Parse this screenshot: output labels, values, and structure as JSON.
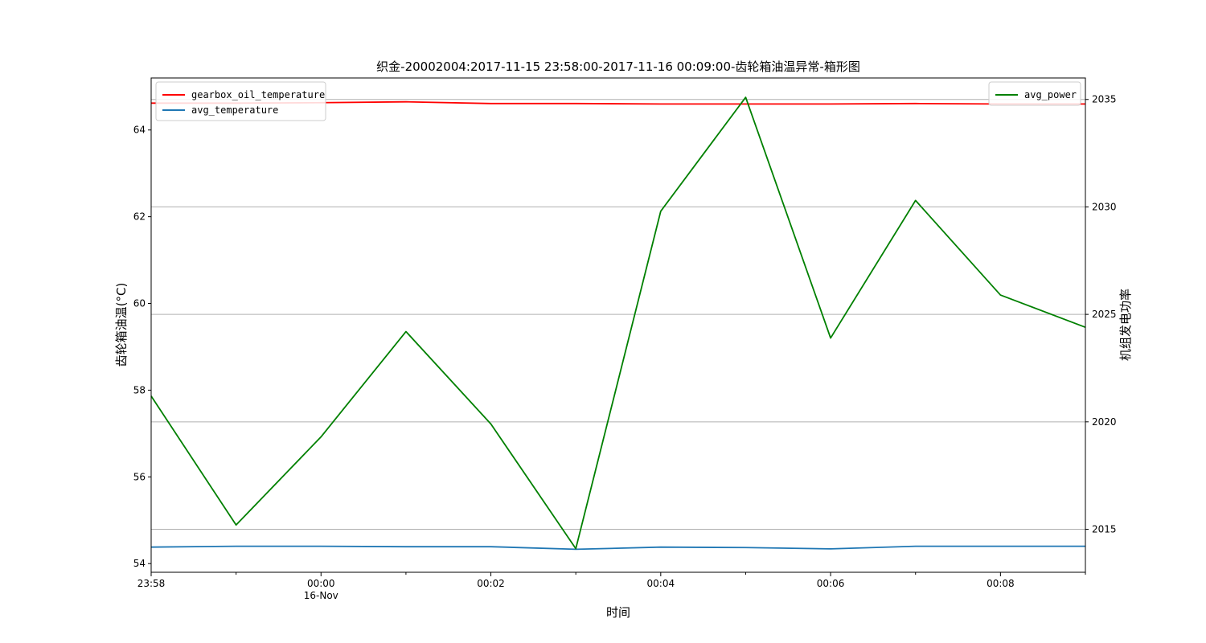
{
  "chart_data": {
    "type": "line",
    "title": "织金-20002004:2017-11-15 23:58:00-2017-11-16 00:09:00-齿轮箱油温异常-箱形图",
    "xlabel": "时间",
    "ylabel_left": "齿轮箱油温(°C)",
    "ylabel_right": "机组发电功率",
    "x": [
      "23:58",
      "23:59",
      "00:00",
      "00:01",
      "00:02",
      "00:03",
      "00:04",
      "00:05",
      "00:06",
      "00:07",
      "00:08",
      "00:09"
    ],
    "x_ticks": [
      {
        "label": "23:58",
        "sub": "",
        "index": 0
      },
      {
        "label": "00:00",
        "sub": "16-Nov",
        "index": 2
      },
      {
        "label": "00:02",
        "sub": "",
        "index": 4
      },
      {
        "label": "00:04",
        "sub": "",
        "index": 6
      },
      {
        "label": "00:06",
        "sub": "",
        "index": 8
      },
      {
        "label": "00:08",
        "sub": "",
        "index": 10
      }
    ],
    "ylim_left": [
      53.8,
      65.2
    ],
    "yticks_left": [
      54,
      56,
      58,
      60,
      62,
      64
    ],
    "ylim_right": [
      2013.0,
      2036.0
    ],
    "yticks_right": [
      2015,
      2020,
      2025,
      2030,
      2035
    ],
    "grid": "horizontal lines on right axis",
    "legend_left_placement": "top-left",
    "legend_right_placement": "top-right",
    "series": [
      {
        "name": "gearbox_oil_temperature",
        "axis": "left",
        "color": "#ff0000",
        "values": [
          64.62,
          64.62,
          64.63,
          64.65,
          64.61,
          64.61,
          64.6,
          64.6,
          64.6,
          64.61,
          64.6,
          64.6
        ]
      },
      {
        "name": "avg_temperature",
        "axis": "left",
        "color": "#1f77b4",
        "values": [
          54.38,
          54.4,
          54.4,
          54.39,
          54.39,
          54.33,
          54.38,
          54.37,
          54.34,
          54.4,
          54.4,
          54.4
        ]
      },
      {
        "name": "avg_power",
        "axis": "right",
        "color": "#008000",
        "values": [
          2021.2,
          2015.2,
          2019.3,
          2024.2,
          2019.9,
          2014.1,
          2029.8,
          2035.1,
          2023.9,
          2030.3,
          2025.9,
          2024.4
        ]
      }
    ]
  }
}
